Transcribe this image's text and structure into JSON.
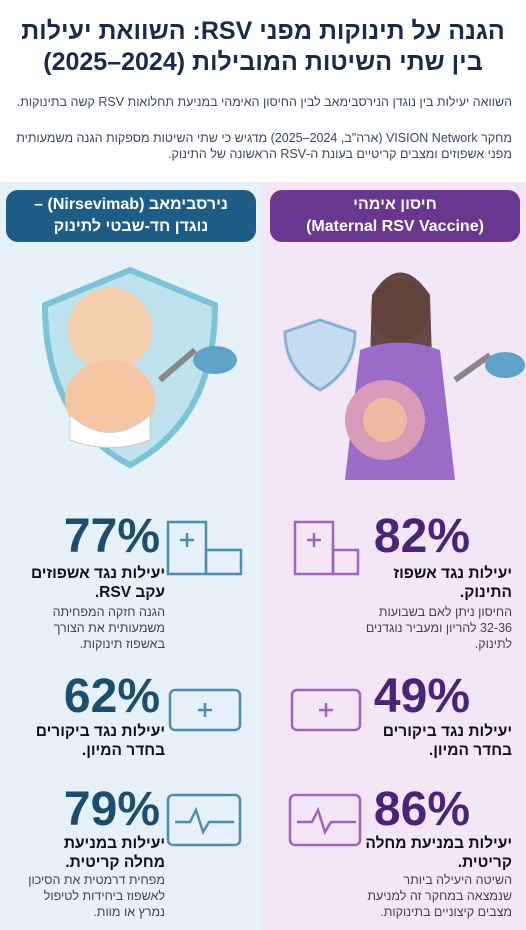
{
  "header": {
    "title": [
      "הגנה על תינוקות מפני RSV: השוואת יעילות",
      "בין שתי השיטות המובילות (2024–2025)"
    ],
    "intro": [
      "השוואה יעילות בין נוגדן הנירסבימאב לבין החיסון האימהי במניעת תחלואות RSV קשה בתינוקות.",
      "מחקר VISION Network (ארה\"ב, 2024–2025) מדגיש כי שתי השיטות מספקות הגנה משמעותית מפני אשפוזים ומצבים קריטיים בעונת ה-RSV הראשונה של התינוק."
    ]
  },
  "columns": [
    {
      "title": [
        "נירסבימאב (Nirsevimab) –",
        "נוגדן חד-שבטי לתינוק"
      ],
      "stats": [
        {
          "value": "77%",
          "label": "יעילות נגד אשפוזים עקב RSV.",
          "description": "הגנה חזקה המפחיתה משמעותית את הצורך באשפוז תינוקות."
        },
        {
          "value": "62%",
          "label": "יעילות נגד ביקורים בחדר המיון."
        },
        {
          "value": "79%",
          "label": "יעילות במניעת מחלה קריטית.",
          "description": "מפחית דרמטית את הסיכון לאשפוז ביחידות לטיפול נמרץ או מוות."
        }
      ]
    },
    {
      "title": [
        "חיסון אימהי",
        "(Maternal RSV Vaccine)"
      ],
      "stats": [
        {
          "value": "82%",
          "label": "יעילות נגד אשפוז התינוק.",
          "description": "החיסון ניתן לאם בשבועות 32-36 להריון ומעביר נוגדנים לתינוק."
        },
        {
          "value": "49%",
          "label": "יעילות נגד ביקורים בחדר המיון."
        },
        {
          "value": "86%",
          "label": "יעילות במניעת מחלה קריטית.",
          "description": "השיטה היעילה ביותר שנמצאה במחקר זה למניעת מצבים קיצוניים בתינוקות."
        }
      ]
    }
  ]
}
